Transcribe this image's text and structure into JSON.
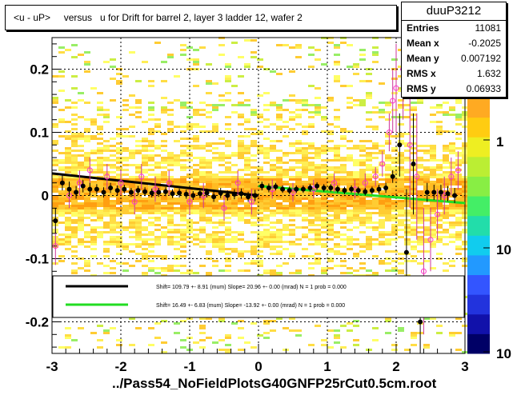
{
  "chart_data": {
    "type": "scatter",
    "title": "<u - uP>     versus   u for Drift for barrel 2, layer 3 ladder 12, wafer 2",
    "xlabel": "../Pass54_NoFieldPlotsG40GNFP25rCut0.5cm.root",
    "ylabel": "",
    "xlim": [
      -3,
      3
    ],
    "ylim": [
      -0.25,
      0.25
    ],
    "x_ticks": [
      "-3",
      "-2",
      "-1",
      "0",
      "1",
      "2",
      "3"
    ],
    "y_ticks": [
      "-0.2",
      "-0.1",
      "0",
      "0.1",
      "0.2"
    ],
    "color_scale_ticks": [
      "1",
      "10",
      "10"
    ],
    "grid": true,
    "background": "2D histogram (colz), predominantly yellow/orange bins",
    "stats": {
      "name": "duuP3212",
      "entries": [
        {
          "key": "Entries",
          "value": "11081"
        },
        {
          "key": "Mean x",
          "value": "-0.2025"
        },
        {
          "key": "Mean y",
          "value": "0.007192"
        },
        {
          "key": "RMS x",
          "value": "1.632"
        },
        {
          "key": "RMS y",
          "value": "0.06933"
        }
      ]
    },
    "profile_black": {
      "x": [
        -2.95,
        -2.85,
        -2.75,
        -2.65,
        -2.55,
        -2.45,
        -2.35,
        -2.25,
        -2.15,
        -2.05,
        -1.95,
        -1.85,
        -1.75,
        -1.65,
        -1.55,
        -1.45,
        -1.35,
        -1.25,
        -1.15,
        -1.05,
        -0.95,
        -0.85,
        -0.75,
        -0.65,
        -0.55,
        -0.45,
        -0.35,
        -0.25,
        -0.15,
        -0.05,
        0.05,
        0.15,
        0.25,
        0.35,
        0.45,
        0.55,
        0.65,
        0.75,
        0.85,
        0.95,
        1.05,
        1.15,
        1.25,
        1.35,
        1.45,
        1.55,
        1.65,
        1.75,
        1.85,
        1.95,
        2.05,
        2.15,
        2.25,
        2.35,
        2.45,
        2.55,
        2.65,
        2.75,
        2.85
      ],
      "y": [
        -0.04,
        0.02,
        0.01,
        0.005,
        0.015,
        0.01,
        0.01,
        0.005,
        0.012,
        0.008,
        0.01,
        0.005,
        0.008,
        0.006,
        0.004,
        0.005,
        0.006,
        0.003,
        0.004,
        0.002,
        0.0,
        0.003,
        0.004,
        -0.002,
        0.004,
        0.0,
        0.002,
        0.003,
        -0.002,
        0.0,
        0.015,
        0.012,
        0.014,
        0.01,
        0.008,
        0.01,
        0.01,
        0.012,
        0.015,
        0.012,
        0.012,
        0.01,
        0.008,
        0.01,
        0.008,
        0.006,
        0.008,
        0.01,
        0.012,
        0.03,
        0.08,
        -0.09,
        0.05,
        -0.2,
        0.005,
        0.005,
        0.005,
        0.003,
        0.0
      ],
      "yerr": [
        0.02,
        0.012,
        0.012,
        0.01,
        0.01,
        0.01,
        0.008,
        0.008,
        0.008,
        0.008,
        0.007,
        0.007,
        0.007,
        0.007,
        0.007,
        0.007,
        0.007,
        0.007,
        0.007,
        0.007,
        0.007,
        0.007,
        0.007,
        0.008,
        0.008,
        0.008,
        0.008,
        0.008,
        0.008,
        0.009,
        0.007,
        0.007,
        0.006,
        0.006,
        0.006,
        0.006,
        0.006,
        0.006,
        0.006,
        0.006,
        0.006,
        0.006,
        0.006,
        0.006,
        0.006,
        0.006,
        0.006,
        0.007,
        0.008,
        0.01,
        0.05,
        0.1,
        0.08,
        0.05,
        0.015,
        0.012,
        0.012,
        0.012,
        0.012
      ]
    },
    "profile_magenta": {
      "x": [
        -2.95,
        -2.75,
        -2.6,
        -2.45,
        -2.2,
        -2.0,
        -1.8,
        -1.7,
        -1.5,
        -1.3,
        -1.0,
        -0.8,
        -0.5,
        -0.3,
        -0.1,
        0.2,
        0.5,
        0.8,
        1.1,
        1.4,
        1.55,
        1.7,
        1.8,
        1.9,
        1.95,
        2.0,
        2.1,
        2.2,
        2.3,
        2.4,
        2.5,
        2.6,
        2.7,
        2.8,
        2.9
      ],
      "y": [
        -0.08,
        0.0,
        0.02,
        0.04,
        0.03,
        0.02,
        -0.01,
        0.03,
        0.01,
        0.02,
        -0.01,
        0.0,
        -0.02,
        0.02,
        -0.01,
        0.01,
        0.005,
        0.01,
        0.02,
        0.01,
        0.02,
        0.03,
        0.05,
        0.1,
        0.15,
        0.17,
        0.2,
        0.08,
        0.03,
        -0.12,
        -0.07,
        -0.03,
        0.0,
        0.03,
        0.04
      ],
      "yerr": [
        0.03,
        0.02,
        0.02,
        0.02,
        0.02,
        0.02,
        0.02,
        0.02,
        0.02,
        0.02,
        0.02,
        0.02,
        0.02,
        0.02,
        0.02,
        0.015,
        0.015,
        0.015,
        0.015,
        0.015,
        0.015,
        0.015,
        0.02,
        0.03,
        0.05,
        0.07,
        0.08,
        0.1,
        0.1,
        0.1,
        0.05,
        0.04,
        0.03,
        0.03,
        0.03
      ]
    },
    "fits": [
      {
        "label": "Shift=   109.79 +- 8.91 (mum) Slope=   20.96 +- 0.00 (mrad)  N = 1 prob = 0.000",
        "color": "#000000",
        "x_range": [
          -3,
          0
        ],
        "y_range": [
          0.035,
          0.0
        ]
      },
      {
        "label": "Shift=   16.49 +- 6.83 (mum) Slope=   -13.92 +- 0.00 (mrad)  N = 1 prob = 0.000",
        "color": "#22dd22",
        "x_range": [
          0,
          3
        ],
        "y_range": [
          0.015,
          -0.012
        ]
      }
    ]
  }
}
